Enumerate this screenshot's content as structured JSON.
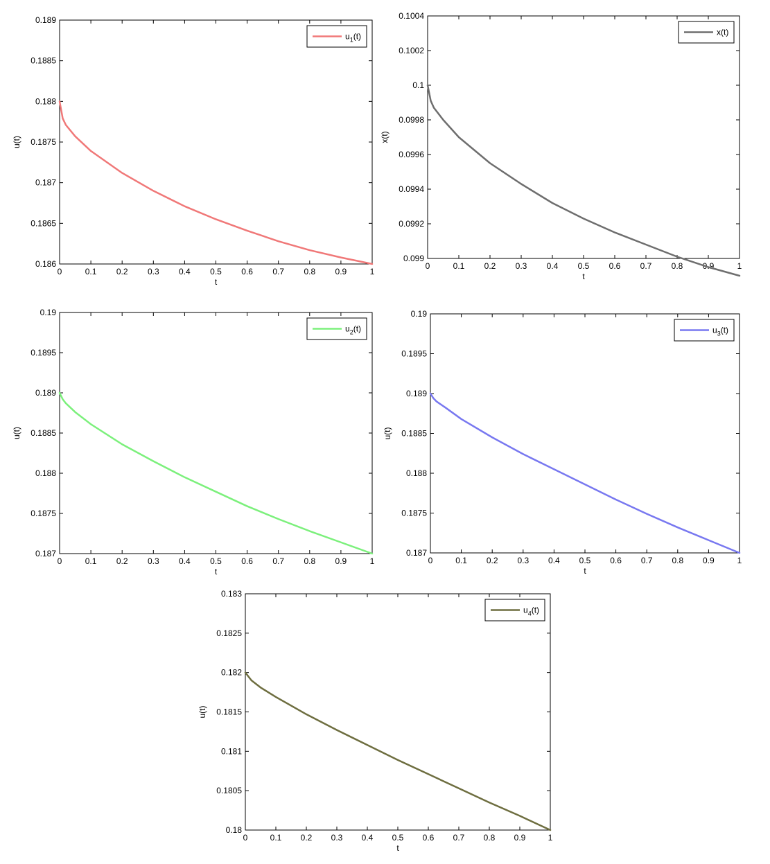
{
  "chart_data": [
    {
      "id": "u1",
      "type": "line",
      "xlabel": "t",
      "ylabel": "u(t)",
      "xlim": [
        0,
        1
      ],
      "ylim": [
        0.186,
        0.189
      ],
      "xticks": [
        "0",
        "0.1",
        "0.2",
        "0.3",
        "0.4",
        "0.5",
        "0.6",
        "0.7",
        "0.8",
        "0.9",
        "1"
      ],
      "yticks": [
        "0.186",
        "0.1865",
        "0.187",
        "0.1875",
        "0.188",
        "0.1885",
        "0.189"
      ],
      "legend_position": "top-right",
      "series": [
        {
          "name": "u1(t)",
          "legend_main": "u",
          "legend_sub": "1",
          "legend_suffix": "(t)",
          "color": "#f07878",
          "x": [
            0,
            0.01,
            0.02,
            0.05,
            0.1,
            0.2,
            0.3,
            0.4,
            0.5,
            0.6,
            0.7,
            0.8,
            0.9,
            1.0
          ],
          "y": [
            0.188,
            0.18779,
            0.18771,
            0.18757,
            0.18739,
            0.18712,
            0.1869,
            0.18671,
            0.18655,
            0.18641,
            0.18628,
            0.18617,
            0.18608,
            0.186
          ]
        }
      ]
    },
    {
      "id": "x",
      "type": "line",
      "xlabel": "t",
      "ylabel": "x(t)",
      "xlim": [
        0,
        1
      ],
      "ylim": [
        0.099,
        0.1004
      ],
      "xticks": [
        "0",
        "0.1",
        "0.2",
        "0.3",
        "0.4",
        "0.5",
        "0.6",
        "0.7",
        "0.8",
        "0.9",
        "1"
      ],
      "yticks": [
        "0.099",
        "0.0992",
        "0.0994",
        "0.0996",
        "0.0998",
        "0.1",
        "0.1002",
        "0.1004"
      ],
      "legend_position": "top-right",
      "series": [
        {
          "name": "x(t)",
          "legend_main": "x(t)",
          "legend_sub": "",
          "legend_suffix": "",
          "color": "#6e6e6e",
          "x": [
            0,
            0.01,
            0.02,
            0.05,
            0.1,
            0.2,
            0.3,
            0.4,
            0.5,
            0.6,
            0.7,
            0.8,
            0.9,
            1.0
          ],
          "y": [
            0.1,
            0.09991,
            0.09987,
            0.0998,
            0.0997,
            0.09955,
            0.09943,
            0.09932,
            0.09923,
            0.09915,
            0.09908,
            0.09901,
            0.09895,
            0.0989
          ]
        }
      ]
    },
    {
      "id": "u2",
      "type": "line",
      "xlabel": "t",
      "ylabel": "u(t)",
      "xlim": [
        0,
        1
      ],
      "ylim": [
        0.187,
        0.19
      ],
      "xticks": [
        "0",
        "0.1",
        "0.2",
        "0.3",
        "0.4",
        "0.5",
        "0.6",
        "0.7",
        "0.8",
        "0.9",
        "1"
      ],
      "yticks": [
        "0.187",
        "0.1875",
        "0.188",
        "0.1885",
        "0.189",
        "0.1895",
        "0.19"
      ],
      "legend_position": "top-right",
      "series": [
        {
          "name": "u2(t)",
          "legend_main": "u",
          "legend_sub": "2",
          "legend_suffix": "(t)",
          "color": "#7cf07c",
          "x": [
            0,
            0.01,
            0.02,
            0.05,
            0.1,
            0.2,
            0.3,
            0.4,
            0.5,
            0.6,
            0.7,
            0.8,
            0.9,
            1.0
          ],
          "y": [
            0.189,
            0.18892,
            0.18887,
            0.18876,
            0.18861,
            0.18836,
            0.18815,
            0.18795,
            0.18777,
            0.18759,
            0.18743,
            0.18728,
            0.18714,
            0.187
          ]
        }
      ]
    },
    {
      "id": "u3",
      "type": "line",
      "xlabel": "t",
      "ylabel": "u(t)",
      "xlim": [
        0,
        1
      ],
      "ylim": [
        0.187,
        0.19
      ],
      "xticks": [
        "0",
        "0.1",
        "0.2",
        "0.3",
        "0.4",
        "0.5",
        "0.6",
        "0.7",
        "0.8",
        "0.9",
        "1"
      ],
      "yticks": [
        "0.187",
        "0.1875",
        "0.188",
        "0.1885",
        "0.189",
        "0.1895",
        "0.19"
      ],
      "legend_position": "top-right",
      "series": [
        {
          "name": "u3(t)",
          "legend_main": "u",
          "legend_sub": "3",
          "legend_suffix": "(t)",
          "color": "#7878f0",
          "x": [
            0,
            0.01,
            0.02,
            0.05,
            0.1,
            0.2,
            0.3,
            0.4,
            0.5,
            0.6,
            0.7,
            0.8,
            0.9,
            1.0
          ],
          "y": [
            0.189,
            0.18894,
            0.1889,
            0.18882,
            0.18868,
            0.18845,
            0.18824,
            0.18805,
            0.18786,
            0.18767,
            0.18749,
            0.18732,
            0.18716,
            0.187
          ]
        }
      ]
    },
    {
      "id": "u4",
      "type": "line",
      "xlabel": "t",
      "ylabel": "u(t)",
      "xlim": [
        0,
        1
      ],
      "ylim": [
        0.18,
        0.183
      ],
      "xticks": [
        "0",
        "0.1",
        "0.2",
        "0.3",
        "0.4",
        "0.5",
        "0.6",
        "0.7",
        "0.8",
        "0.9",
        "1"
      ],
      "yticks": [
        "0.18",
        "0.1805",
        "0.181",
        "0.1815",
        "0.182",
        "0.1825",
        "0.183"
      ],
      "legend_position": "top-right",
      "series": [
        {
          "name": "u4(t)",
          "legend_main": "u",
          "legend_sub": "4",
          "legend_suffix": "(t)",
          "color": "#6e6e40",
          "x": [
            0,
            0.01,
            0.02,
            0.05,
            0.1,
            0.2,
            0.3,
            0.4,
            0.5,
            0.6,
            0.7,
            0.8,
            0.9,
            1.0
          ],
          "y": [
            0.182,
            0.18195,
            0.1819,
            0.18181,
            0.18169,
            0.18147,
            0.18127,
            0.18108,
            0.18089,
            0.18071,
            0.18053,
            0.18035,
            0.18018,
            0.18
          ]
        }
      ]
    }
  ]
}
